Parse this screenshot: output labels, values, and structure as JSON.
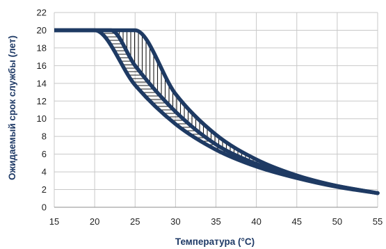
{
  "chart_data": {
    "type": "line",
    "xlabel": "Температура (°C)",
    "ylabel": "Ожидаемый срок службы (лет)",
    "xlim": [
      15,
      55
    ],
    "ylim": [
      0,
      22
    ],
    "x_ticks": [
      15,
      20,
      25,
      30,
      35,
      40,
      45,
      50,
      55
    ],
    "y_ticks": [
      0,
      2,
      4,
      6,
      8,
      10,
      12,
      14,
      16,
      18,
      20,
      22
    ],
    "grid": true,
    "series": [
      {
        "x": [
          15,
          20,
          25,
          30,
          35,
          40,
          45,
          50,
          55
        ],
        "y": [
          20,
          20,
          20,
          12.8,
          8.2,
          5.4,
          3.6,
          2.4,
          1.6
        ]
      },
      {
        "x": [
          15,
          20,
          22,
          25,
          30,
          35,
          40,
          45,
          50,
          55
        ],
        "y": [
          20,
          20,
          20,
          16,
          10.8,
          7.1,
          4.9,
          3.4,
          2.4,
          1.6
        ]
      },
      {
        "x": [
          15,
          20,
          25,
          30,
          35,
          40,
          45,
          50,
          55
        ],
        "y": [
          20,
          20,
          13.8,
          9.4,
          6.5,
          4.6,
          3.3,
          2.3,
          1.6
        ]
      }
    ],
    "hatch": {
      "vertical": {
        "between": [
          0,
          1
        ]
      },
      "horizontal": {
        "between": [
          1,
          2
        ]
      }
    },
    "colors": {
      "series": "#1e3a63",
      "hatch": "#1a1a1a",
      "grid": "#c8c8c8",
      "axis_label": "#1f3a66"
    }
  }
}
